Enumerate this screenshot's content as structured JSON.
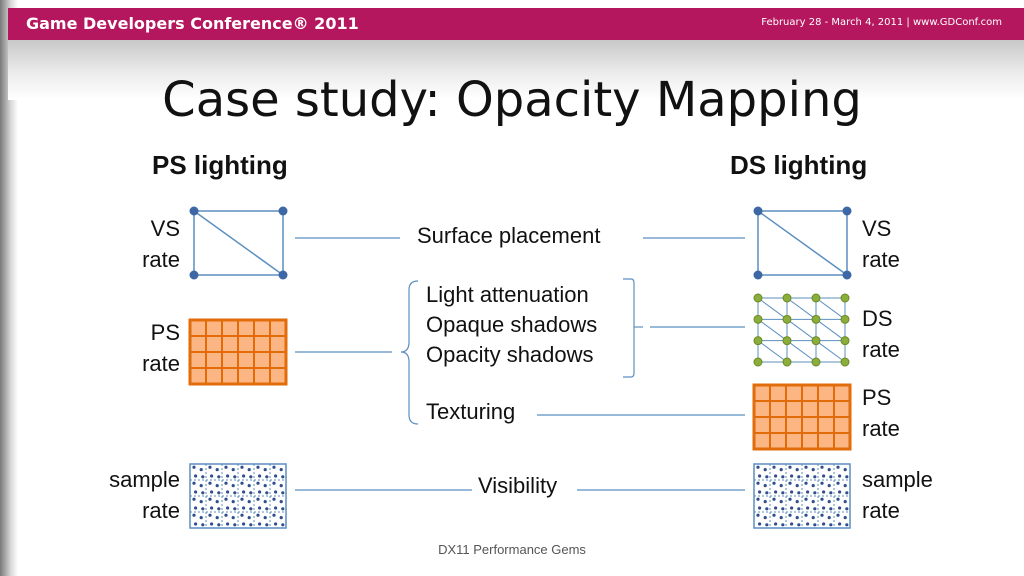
{
  "header": {
    "title": "Game Developers Conference® 2011",
    "date": "February 28 - March 4, 2011 | www.GDConf.com"
  },
  "slide": {
    "title": "Case study: Opacity Mapping",
    "footer": "DX11 Performance Gems"
  },
  "left": {
    "heading": "PS lighting",
    "labels": {
      "vs": [
        "VS",
        "rate"
      ],
      "ps": [
        "PS",
        "rate"
      ],
      "sample": [
        "sample",
        "rate"
      ]
    }
  },
  "right": {
    "heading": "DS lighting",
    "labels": {
      "vs": [
        "VS",
        "rate"
      ],
      "ds": [
        "DS",
        "rate"
      ],
      "ps": [
        "PS",
        "rate"
      ],
      "sample": [
        "sample",
        "rate"
      ]
    }
  },
  "middle": {
    "surface": "Surface placement",
    "group": [
      "Light attenuation",
      "Opaque shadows",
      "Opacity shadows"
    ],
    "texturing": "Texturing",
    "visibility": "Visibility"
  },
  "colors": {
    "header": "#b5175e",
    "line": "#5b8fbf",
    "vertex": "#3d68a5",
    "orange_fill": "#fbb684",
    "orange_border": "#e26b0a",
    "green_node": "#8aad3c",
    "sample_dot": "#2f4f8c"
  }
}
